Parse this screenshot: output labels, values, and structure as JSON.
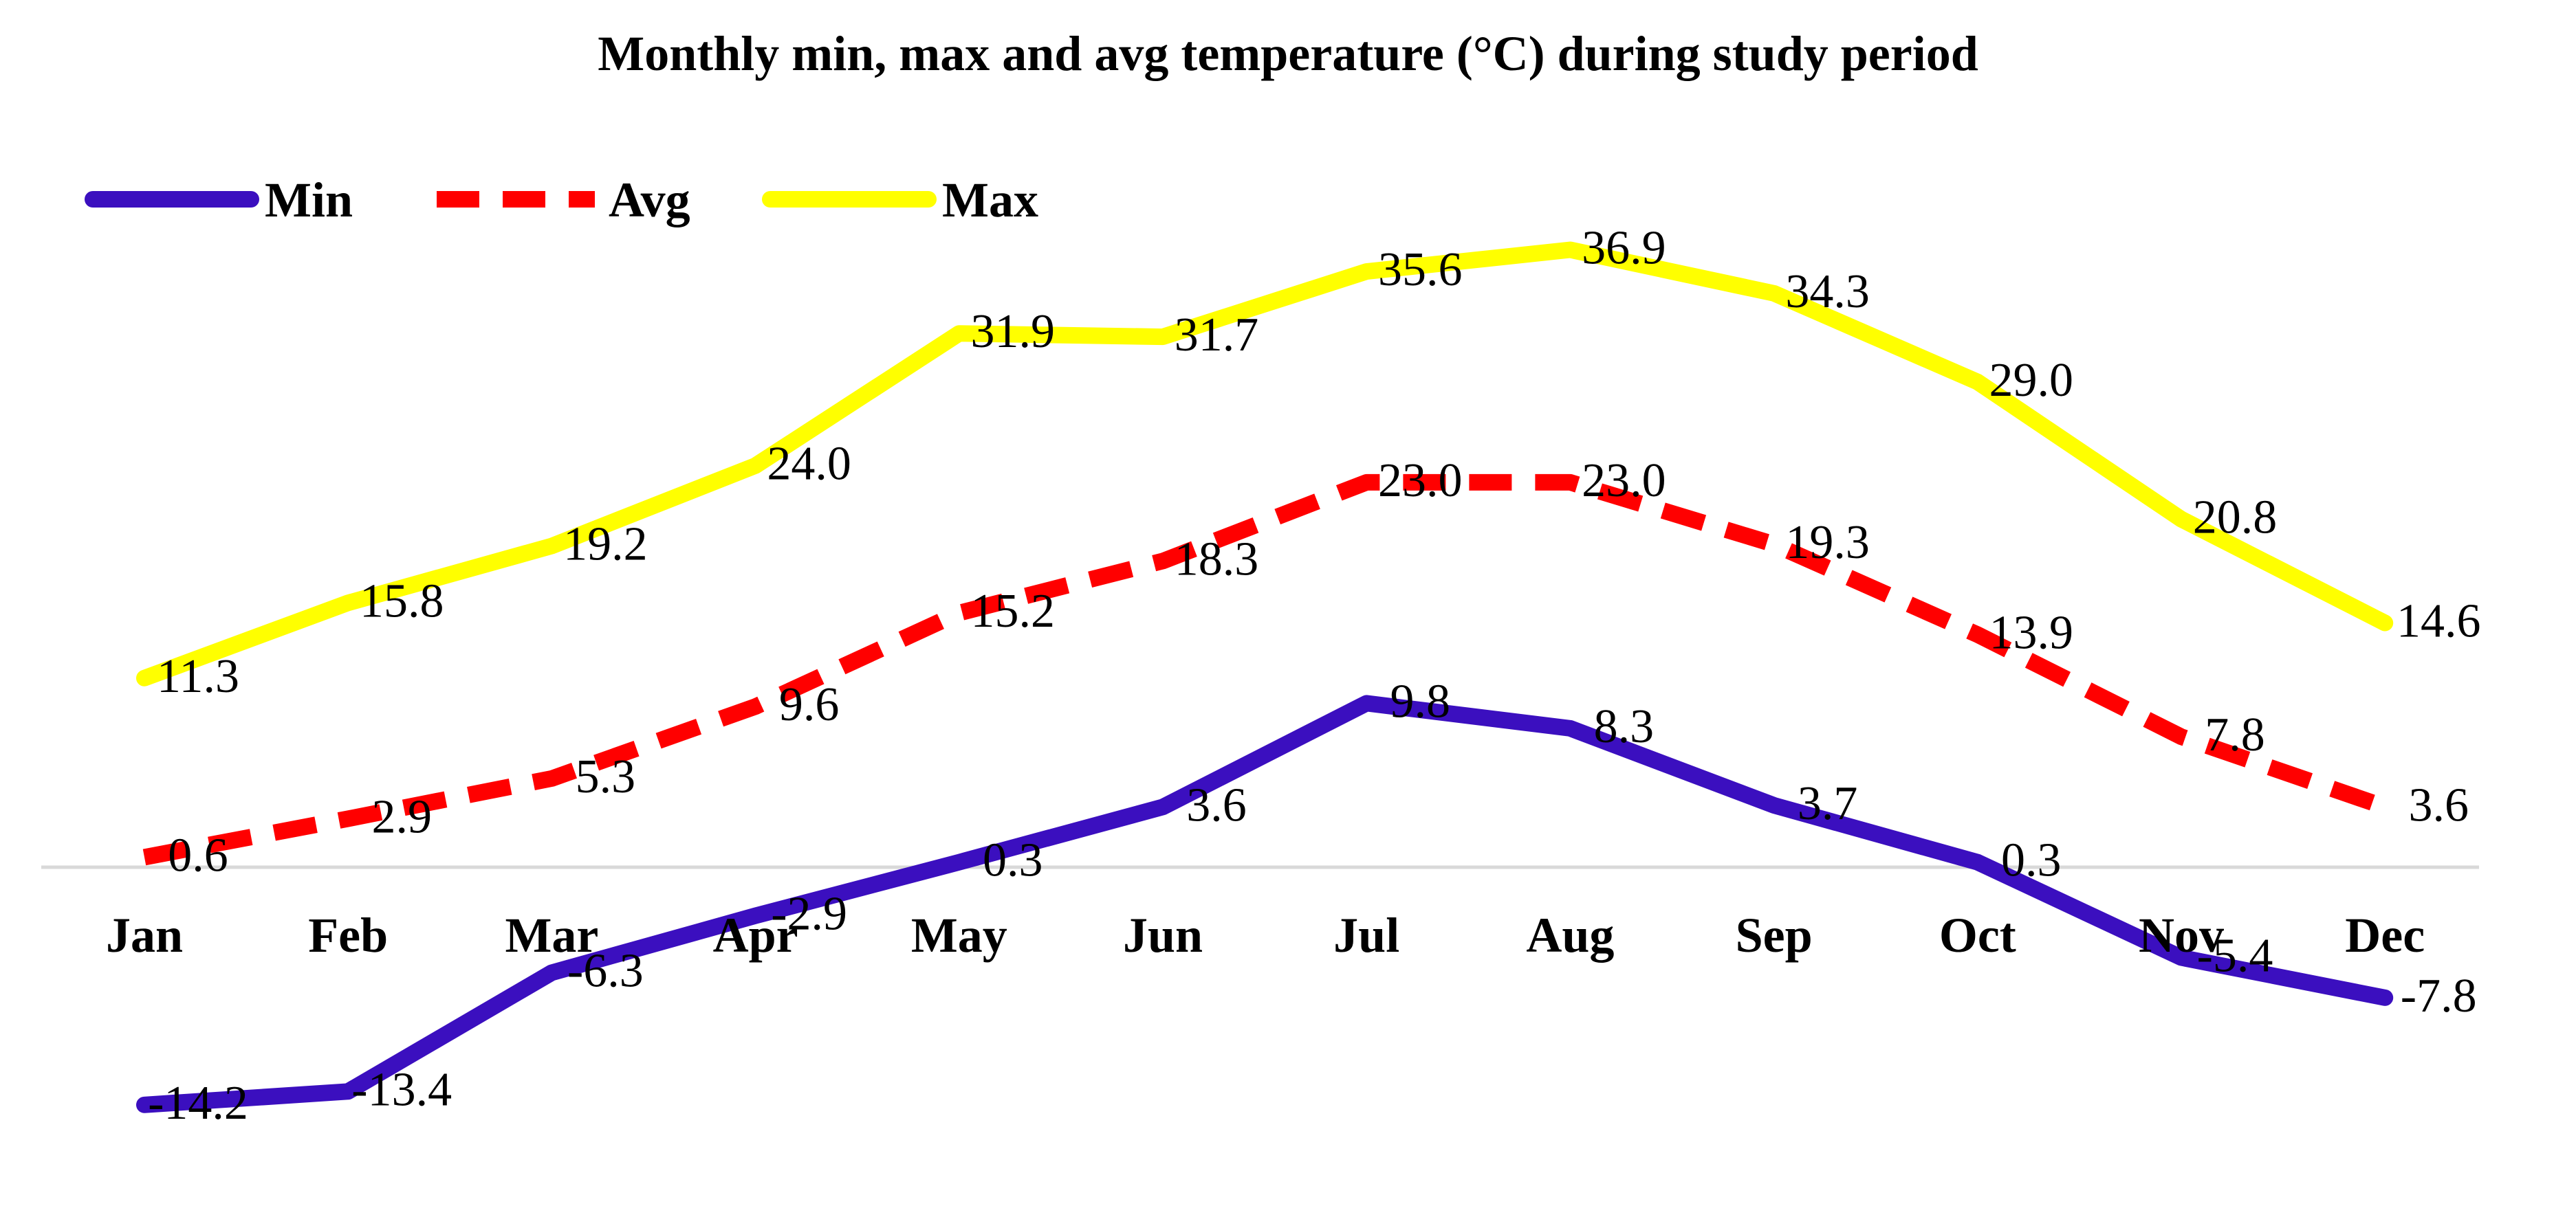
{
  "chart_data": {
    "type": "line",
    "title": "Monthly  min, max and avg temperature (°C) during study period",
    "xlabel": "",
    "ylabel": "",
    "ylim": [
      -14.2,
      36.9
    ],
    "grid": false,
    "legend_position": "top-left",
    "categories": [
      "Jan",
      "Feb",
      "Mar",
      "Apr",
      "May",
      "Jun",
      "Jul",
      "Aug",
      "Sep",
      "Oct",
      "Nov",
      "Dec"
    ],
    "series": [
      {
        "name": "Min",
        "color": "#3B0FBF",
        "style": "solid",
        "values": [
          -14.2,
          -13.4,
          -6.3,
          -2.9,
          0.3,
          3.6,
          9.8,
          8.3,
          3.7,
          0.3,
          -5.4,
          -7.8
        ],
        "labels": [
          "-14.2",
          "-13.4",
          "-6.3",
          "-2.9",
          "0.3",
          "3.6",
          "9.8",
          "8.3",
          "3.7",
          "0.3",
          "-5.4",
          "-7.8"
        ]
      },
      {
        "name": "Avg",
        "color": "#FF0000",
        "style": "dashed",
        "values": [
          0.6,
          2.9,
          5.3,
          9.6,
          15.2,
          18.3,
          23.0,
          23.0,
          19.3,
          13.9,
          7.8,
          3.6
        ],
        "labels": [
          "0.6",
          "2.9",
          "5.3",
          "9.6",
          "15.2",
          "18.3",
          "23.0",
          "23.0",
          "19.3",
          "13.9",
          "7.8",
          "3.6"
        ]
      },
      {
        "name": "Max",
        "color": "#FFFF00",
        "style": "solid",
        "values": [
          11.3,
          15.8,
          19.2,
          24.0,
          31.9,
          31.7,
          35.6,
          36.9,
          34.3,
          29.0,
          20.8,
          14.6
        ],
        "labels": [
          "11.3",
          "15.8",
          "19.2",
          "24.0",
          "31.9",
          "31.7",
          "35.6",
          "36.9",
          "34.3",
          "29.0",
          "20.8",
          "14.6"
        ]
      }
    ],
    "axis_color": "#D9D9D9"
  }
}
